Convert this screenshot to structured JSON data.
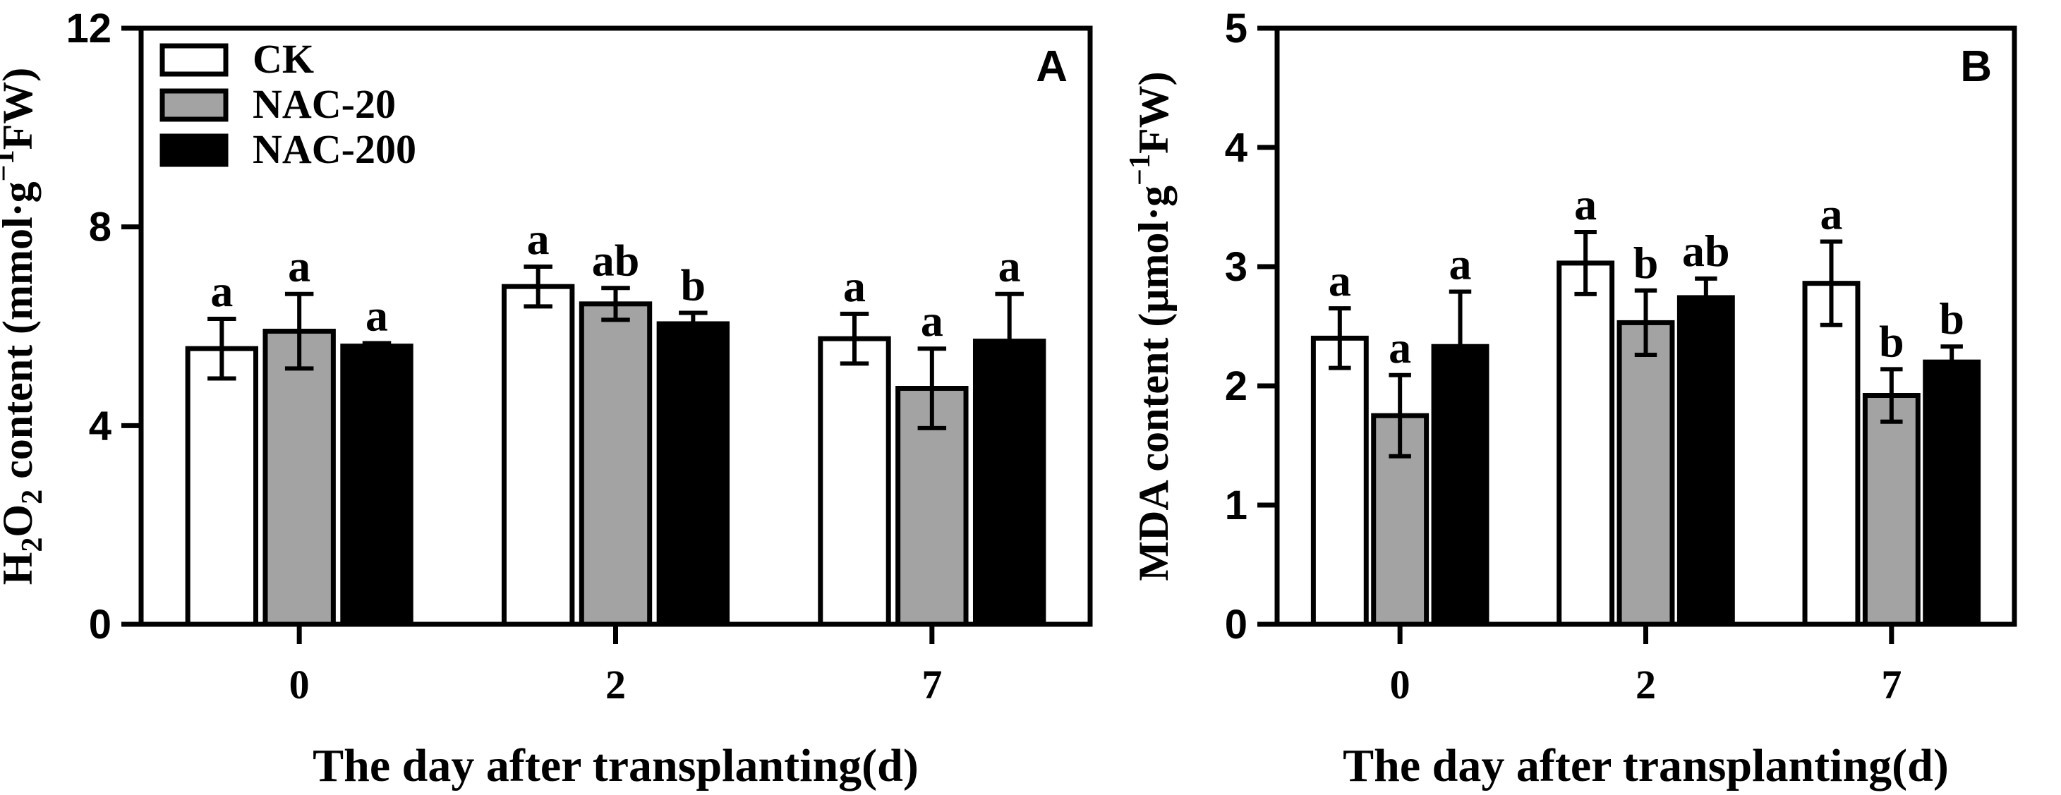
{
  "figure_layout": "two panels side by side",
  "legend": {
    "entries": [
      {
        "name": "CK",
        "color": "#ffffff"
      },
      {
        "name": "NAC-20",
        "color": "#a3a3a3"
      },
      {
        "name": "NAC-200",
        "color": "#000000"
      }
    ]
  },
  "colors": {
    "axis": "#000000",
    "bar_stroke": "#000000"
  },
  "chart_data": [
    {
      "type": "bar",
      "panel_label": "A",
      "categories": [
        "0",
        "2",
        "7"
      ],
      "xlabel": "The day after transplanting(d)",
      "ylabel_parts": {
        "h": "H",
        "sub1": "2",
        "o": "O",
        "sub2": "2",
        "mid": " content (mmol·g",
        "sup": "−1",
        "tail": "FW)"
      },
      "ylim": [
        0,
        12
      ],
      "yticks": [
        "0",
        "4",
        "8",
        "12"
      ],
      "series": [
        {
          "name": "CK",
          "values": [
            5.55,
            6.8,
            5.75
          ],
          "errors": [
            0.6,
            0.4,
            0.5
          ],
          "letters": [
            "a",
            "a",
            "a"
          ]
        },
        {
          "name": "NAC-20",
          "values": [
            5.9,
            6.45,
            4.75
          ],
          "errors": [
            0.75,
            0.32,
            0.8
          ],
          "letters": [
            "a",
            "ab",
            "a"
          ]
        },
        {
          "name": "NAC-200",
          "values": [
            5.6,
            6.05,
            5.7
          ],
          "errors": [
            0.06,
            0.22,
            0.95
          ],
          "letters": [
            "a",
            "b",
            "a"
          ]
        }
      ]
    },
    {
      "type": "bar",
      "panel_label": "B",
      "categories": [
        "0",
        "2",
        "7"
      ],
      "xlabel": "The day after transplanting(d)",
      "ylabel_parts": {
        "h": "",
        "sub1": "",
        "o": "",
        "sub2": "",
        "mid": "MDA content (μmol·g",
        "sup": "−1",
        "tail": "FW)"
      },
      "ylim": [
        0,
        5
      ],
      "yticks": [
        "0",
        "1",
        "2",
        "3",
        "4",
        "5"
      ],
      "series": [
        {
          "name": "CK",
          "values": [
            2.4,
            3.03,
            2.86
          ],
          "errors": [
            0.25,
            0.26,
            0.35
          ],
          "letters": [
            "a",
            "a",
            "a"
          ]
        },
        {
          "name": "NAC-20",
          "values": [
            1.75,
            2.53,
            1.92
          ],
          "errors": [
            0.34,
            0.27,
            0.22
          ],
          "letters": [
            "a",
            "b",
            "b"
          ]
        },
        {
          "name": "NAC-200",
          "values": [
            2.33,
            2.74,
            2.2
          ],
          "errors": [
            0.46,
            0.16,
            0.13
          ],
          "letters": [
            "a",
            "ab",
            "b"
          ]
        }
      ]
    }
  ]
}
